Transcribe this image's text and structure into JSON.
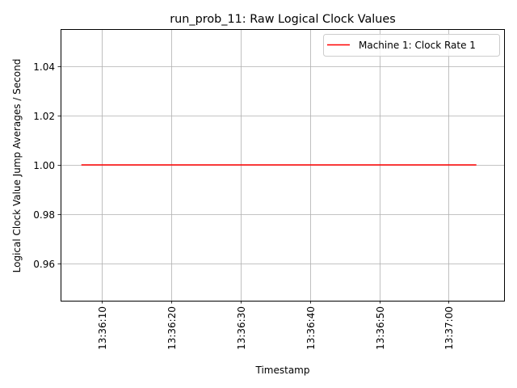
{
  "chart_data": {
    "type": "line",
    "title": "run_prob_11: Raw Logical Clock Values",
    "xlabel": "Timestamp",
    "ylabel": "Logical Clock Value Jump Averages / Second",
    "x_ticks": [
      "13:36:10",
      "13:36:20",
      "13:36:30",
      "13:36:40",
      "13:36:50",
      "13:37:00"
    ],
    "y_ticks": [
      "0.96",
      "0.98",
      "1.00",
      "1.02",
      "1.04"
    ],
    "ylim": [
      0.945,
      1.055
    ],
    "xlim": [
      "13:36:04",
      "13:37:08"
    ],
    "grid": true,
    "legend_position": "top-right",
    "series": [
      {
        "name": "Machine 1: Clock Rate 1",
        "color": "#ff0000",
        "x": [
          "13:36:07",
          "13:37:04"
        ],
        "y": [
          1.0,
          1.0
        ]
      }
    ]
  }
}
